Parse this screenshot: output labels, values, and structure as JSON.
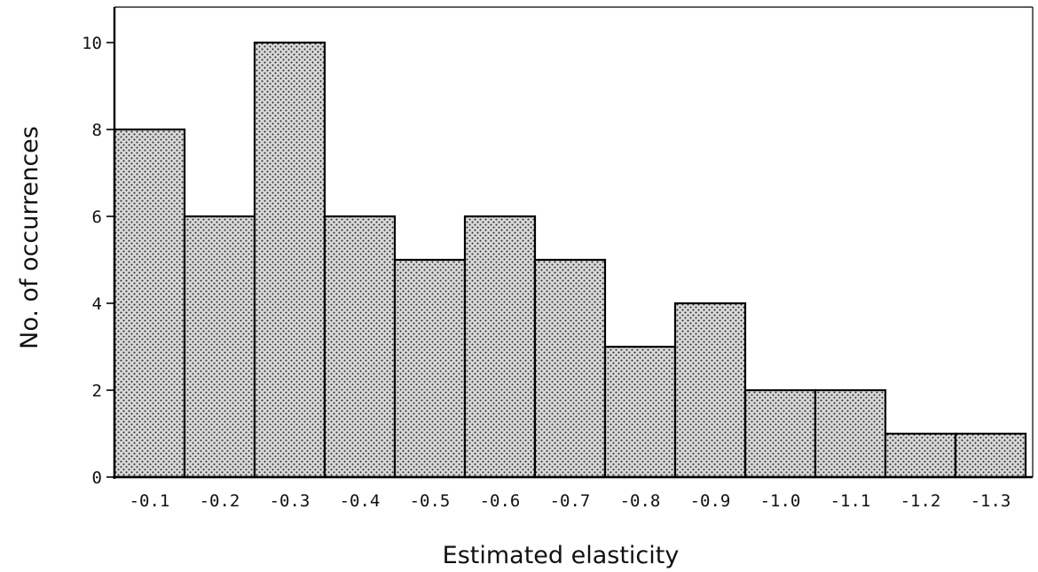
{
  "chart_data": {
    "type": "bar",
    "title": "",
    "xlabel": "Estimated elasticity",
    "ylabel": "No. of occurrences",
    "categories": [
      "-0.1",
      "-0.2",
      "-0.3",
      "-0.4",
      "-0.5",
      "-0.6",
      "-0.7",
      "-0.8",
      "-0.9",
      "-1.0",
      "-1.1",
      "-1.2",
      "-1.3"
    ],
    "values": [
      8,
      6,
      10,
      6,
      5,
      6,
      5,
      3,
      4,
      2,
      2,
      1,
      1
    ],
    "ylim": [
      0,
      11
    ],
    "yticks": [
      0,
      2,
      4,
      6,
      8,
      10
    ],
    "grid": false,
    "bar_pattern": "stipple",
    "colors": {
      "bar_fill": "#d9d9d9",
      "bar_dots": "#2a2a2a",
      "bar_edge": "#000000",
      "axis": "#000000"
    }
  }
}
